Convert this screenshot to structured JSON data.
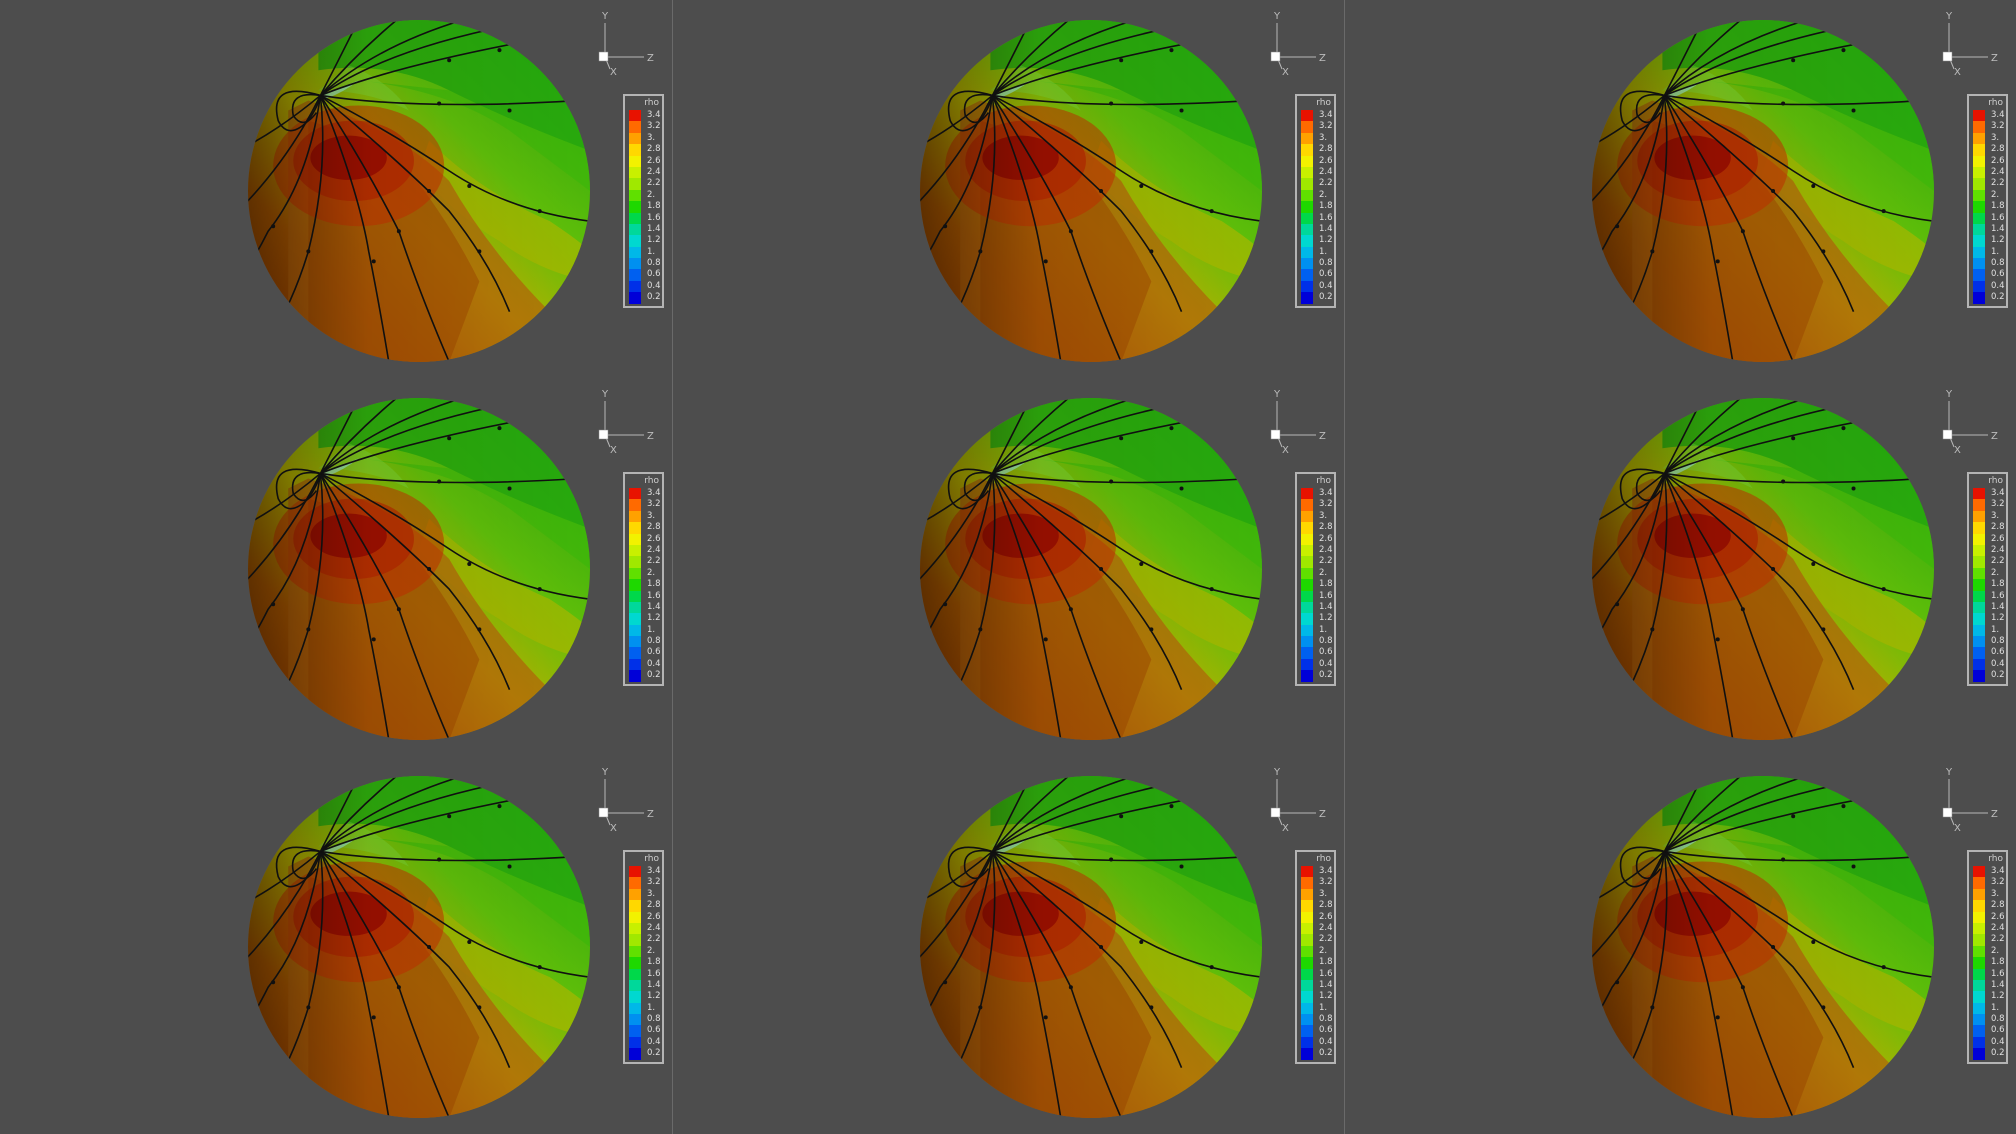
{
  "colorbar": {
    "title": "rho",
    "ticks": [
      "3.4",
      "3.2",
      "3.",
      "2.8",
      "2.6",
      "2.4",
      "2.2",
      "2.",
      "1.8",
      "1.6",
      "1.4",
      "1.2",
      "1.",
      "0.8",
      "0.6",
      "0.4",
      "0.2"
    ],
    "colors": [
      "#e81200",
      "#ff6a00",
      "#ffa100",
      "#ffd800",
      "#f2f200",
      "#c8f000",
      "#a0e800",
      "#60e000",
      "#1ed800",
      "#00d84a",
      "#00d89a",
      "#00d8d0",
      "#00b8e8",
      "#0090f0",
      "#0060f0",
      "#0030e8",
      "#0000d8"
    ]
  },
  "axes": {
    "y_label": "Y",
    "z_label": "Z",
    "x_label": "X"
  },
  "panels": [
    {
      "id": 1
    },
    {
      "id": 2
    },
    {
      "id": 3
    },
    {
      "id": 4
    },
    {
      "id": 5
    },
    {
      "id": 6
    },
    {
      "id": 7
    },
    {
      "id": 8
    },
    {
      "id": 9
    }
  ]
}
